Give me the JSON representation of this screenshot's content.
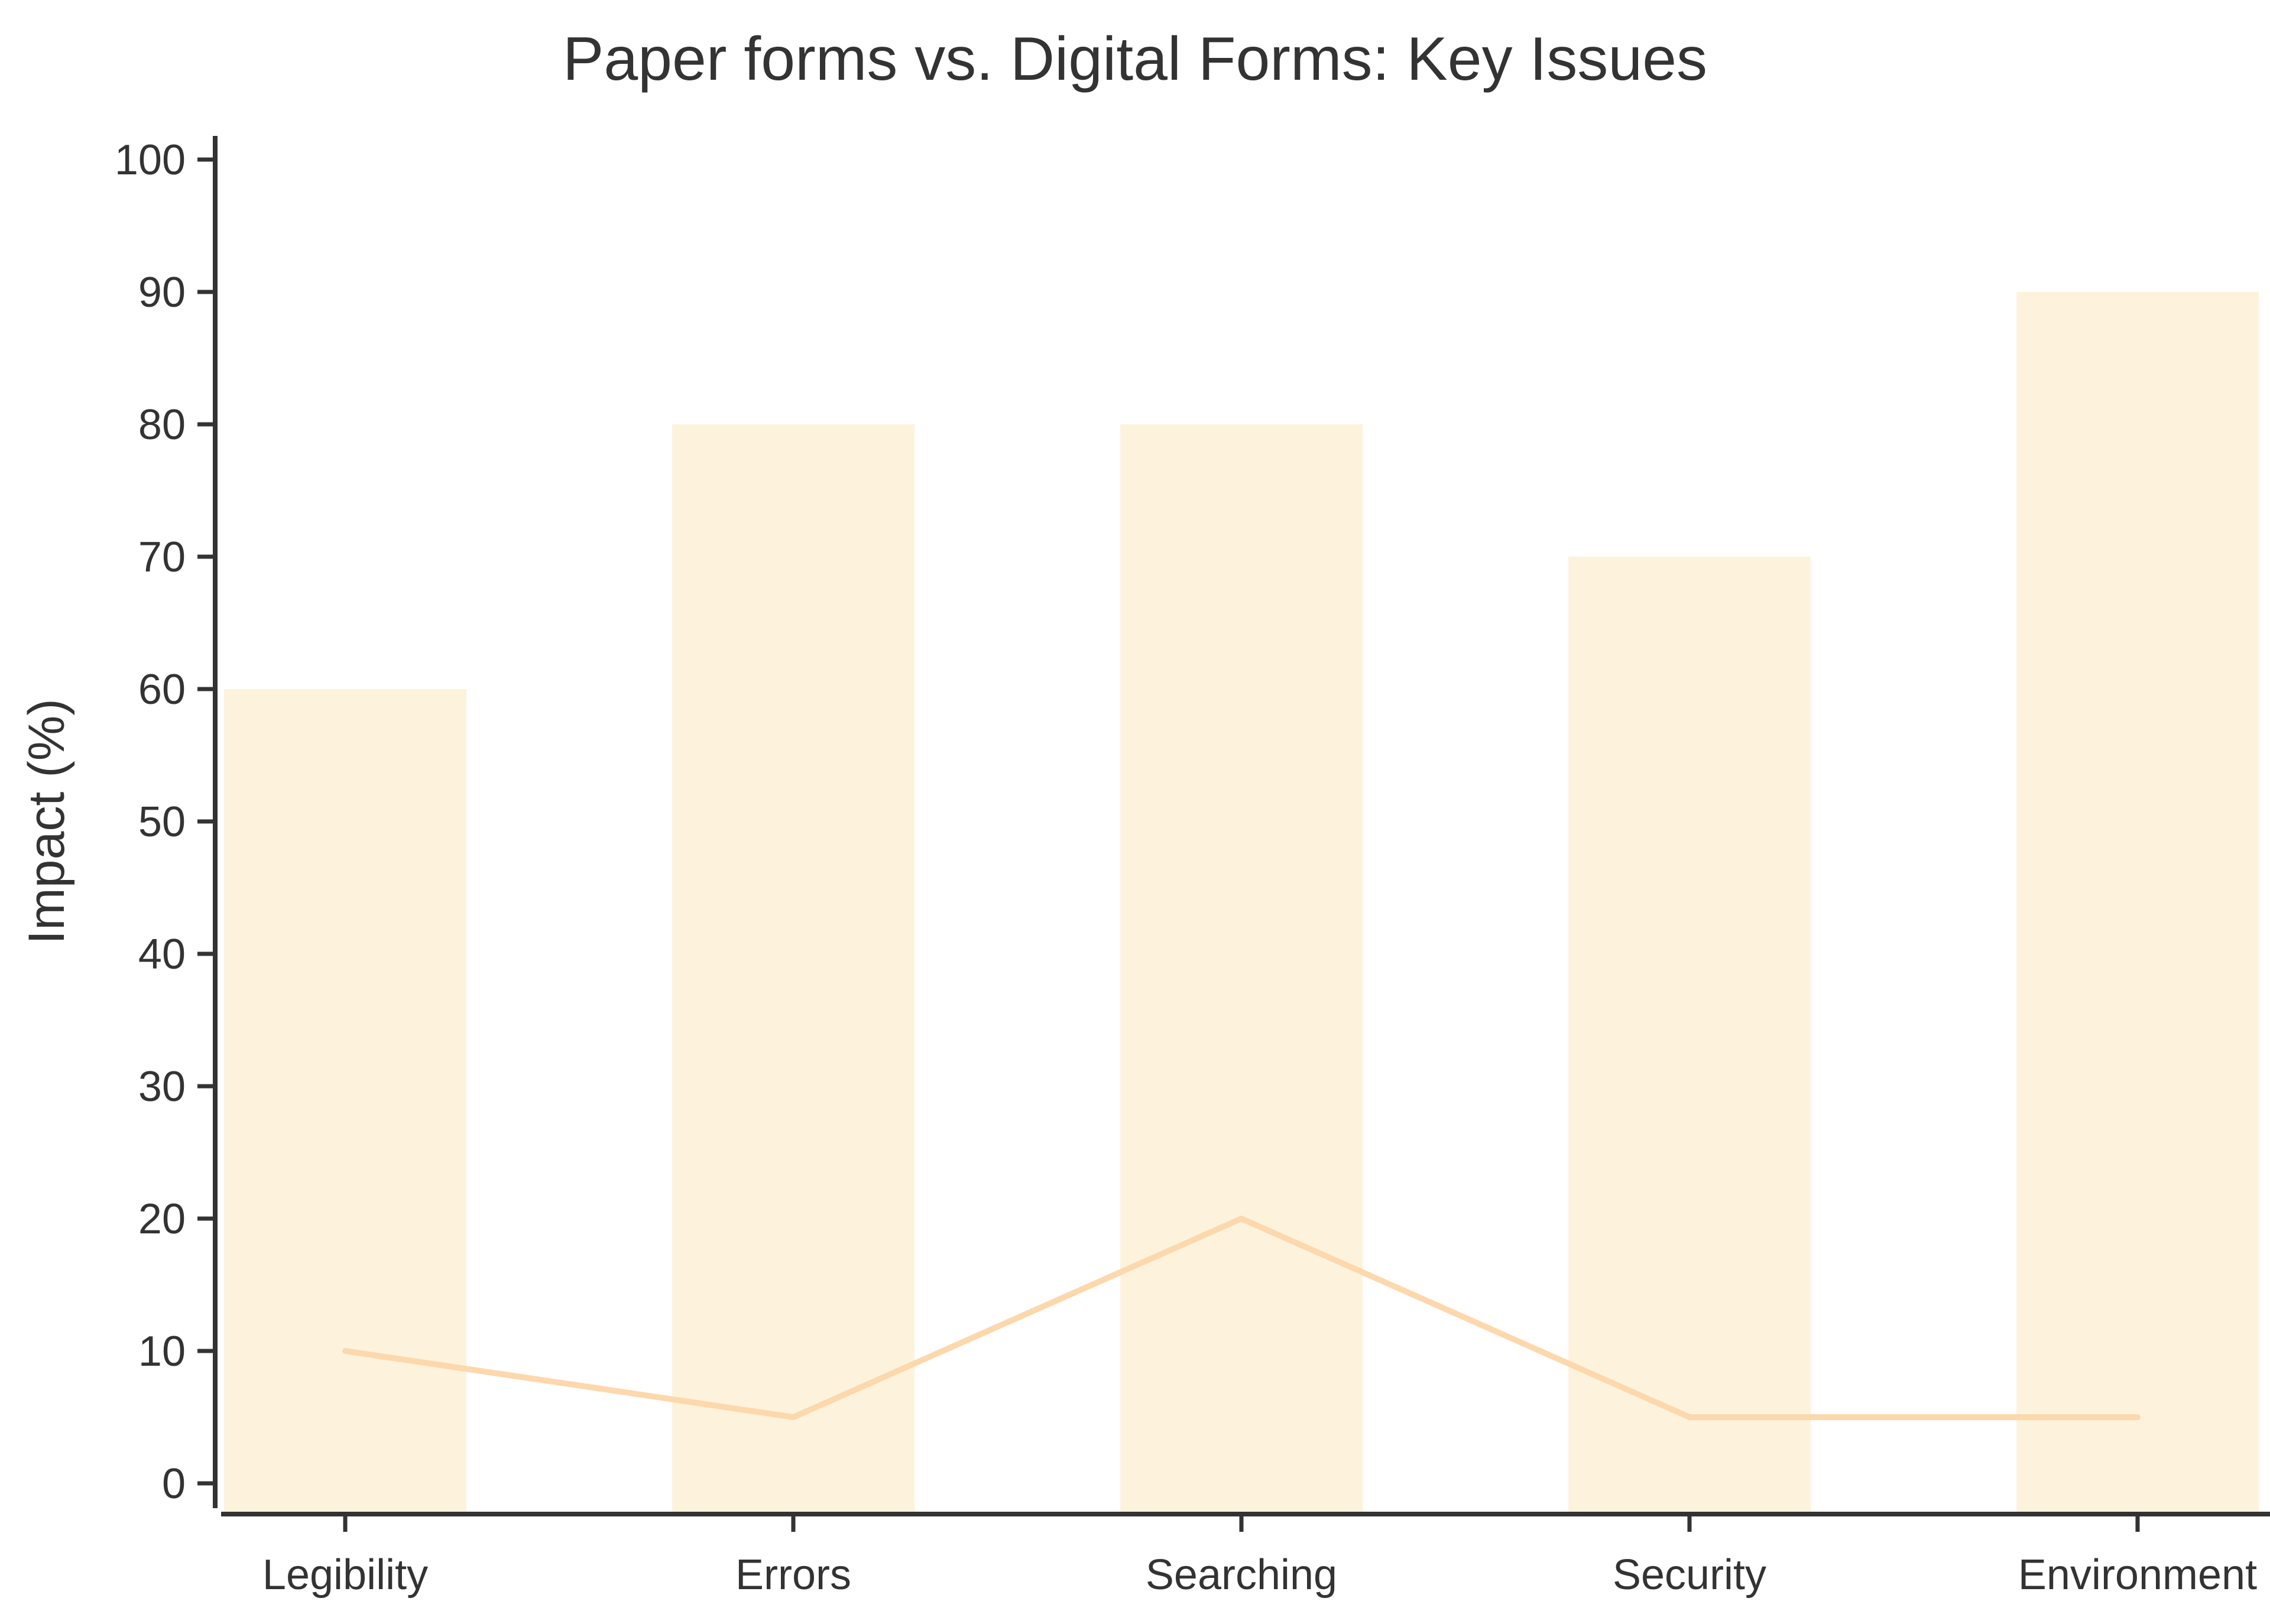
{
  "chart_data": {
    "type": "bar",
    "title": "Paper forms vs. Digital Forms: Key Issues",
    "xlabel": "",
    "ylabel": "Impact (%)",
    "ylim": [
      0,
      100
    ],
    "yticks": [
      0,
      10,
      20,
      30,
      40,
      50,
      60,
      70,
      80,
      90,
      100
    ],
    "categories": [
      "Legibility",
      "Errors",
      "Searching",
      "Security",
      "Environment"
    ],
    "series": [
      {
        "kind": "bar",
        "values": [
          60,
          80,
          80,
          70,
          90
        ],
        "color": "#fdf3dc"
      },
      {
        "kind": "line",
        "values": [
          10,
          5,
          20,
          5,
          5
        ],
        "color": "#fdd8ad"
      }
    ],
    "grid": false,
    "legend": "none",
    "colors": {
      "axis": "#333333",
      "text": "#333333"
    }
  }
}
